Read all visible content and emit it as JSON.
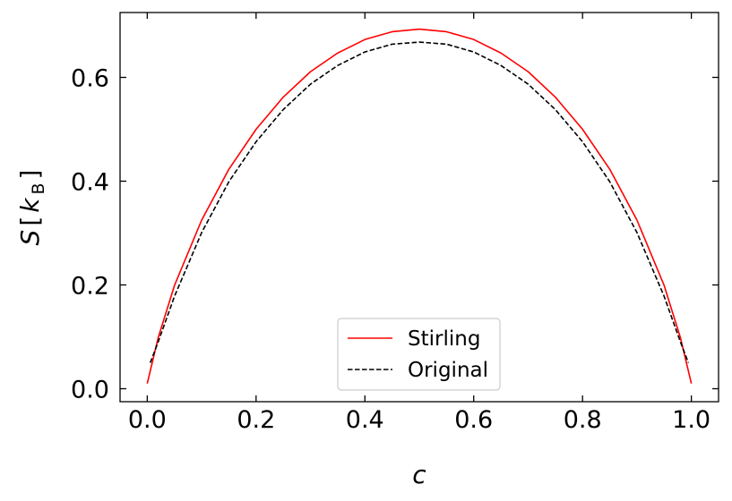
{
  "chart_data": {
    "type": "line",
    "xlabel": "c",
    "ylabel": {
      "symbol": "S",
      "unit_symbol": "k",
      "unit_subscript": "B"
    },
    "xlim": [
      -0.05,
      1.05
    ],
    "ylim": [
      -0.025,
      0.725
    ],
    "x_ticks": [
      0.0,
      0.2,
      0.4,
      0.6,
      0.8,
      1.0
    ],
    "x_tick_labels": [
      "0.0",
      "0.2",
      "0.4",
      "0.6",
      "0.8",
      "1.0"
    ],
    "y_ticks": [
      0.0,
      0.2,
      0.4,
      0.6
    ],
    "y_tick_labels": [
      "0.0",
      "0.2",
      "0.4",
      "0.6"
    ],
    "grid": false,
    "legend_position": "bottom-center",
    "series": [
      {
        "name": "Stirling",
        "color": "#ff0000",
        "style": "solid",
        "x": [
          0.0,
          0.02,
          0.05,
          0.1,
          0.15,
          0.2,
          0.25,
          0.3,
          0.35,
          0.4,
          0.45,
          0.5,
          0.55,
          0.6,
          0.65,
          0.7,
          0.75,
          0.8,
          0.85,
          0.9,
          0.95,
          0.98,
          1.0
        ],
        "y": [
          0.01,
          0.098,
          0.199,
          0.325,
          0.423,
          0.5,
          0.562,
          0.611,
          0.647,
          0.673,
          0.688,
          0.693,
          0.688,
          0.673,
          0.647,
          0.611,
          0.562,
          0.5,
          0.423,
          0.325,
          0.199,
          0.098,
          0.01
        ]
      },
      {
        "name": "Original",
        "color": "#000000",
        "style": "dashed",
        "x": [
          0.0055,
          0.02,
          0.05,
          0.1,
          0.15,
          0.2,
          0.25,
          0.3,
          0.35,
          0.4,
          0.45,
          0.5,
          0.55,
          0.6,
          0.65,
          0.7,
          0.75,
          0.8,
          0.85,
          0.9,
          0.95,
          0.98,
          0.9945
        ],
        "y": [
          0.05,
          0.09,
          0.178,
          0.301,
          0.399,
          0.476,
          0.538,
          0.587,
          0.623,
          0.649,
          0.664,
          0.668,
          0.664,
          0.649,
          0.623,
          0.587,
          0.538,
          0.476,
          0.399,
          0.301,
          0.178,
          0.09,
          0.05
        ]
      }
    ]
  }
}
